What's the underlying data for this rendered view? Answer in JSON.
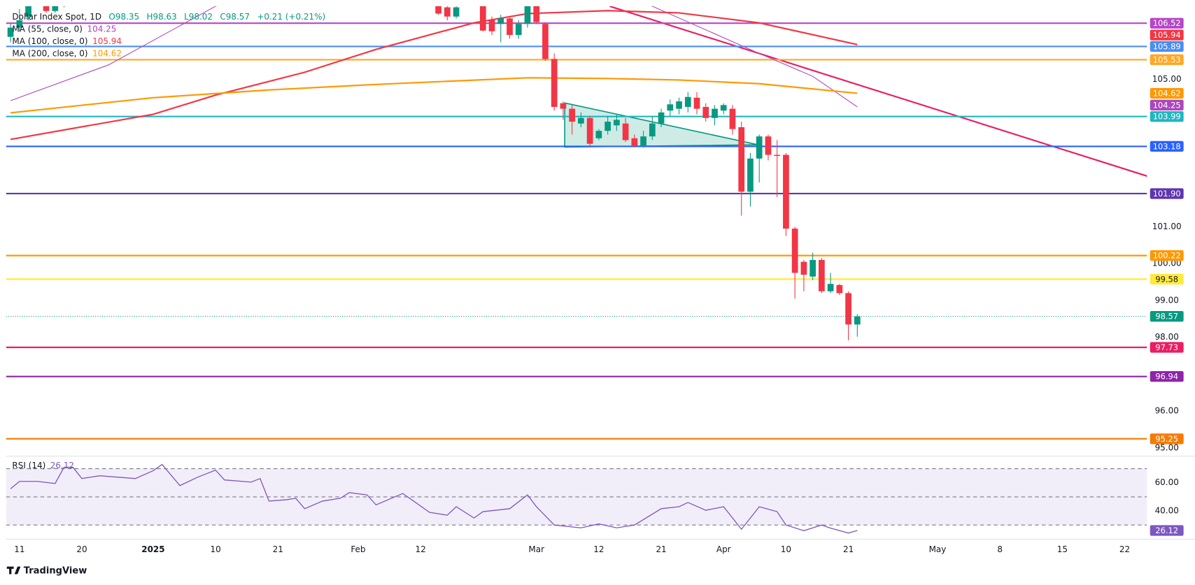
{
  "chart_data": [
    {
      "type": "candlestick",
      "title": "Dollar Index Spot, 1D",
      "ohlc": [
        "O98.35",
        "H98.63",
        "L98.02",
        "C98.57"
      ],
      "change": "+0.21 (+0.21%)",
      "categories": [
        null,
        "11",
        null,
        null,
        null,
        null,
        null,
        null,
        "20",
        null,
        null,
        null,
        null,
        null,
        null,
        null,
        "2025",
        null,
        null,
        null,
        null,
        null,
        null,
        "10",
        null,
        null,
        null,
        null,
        null,
        null,
        "21",
        null,
        null,
        null,
        null,
        null,
        null,
        null,
        null,
        "Feb",
        null,
        null,
        null,
        null,
        null,
        null,
        "12",
        null,
        null,
        null,
        null,
        null,
        null,
        null,
        null,
        null,
        null,
        null,
        null,
        "Mar",
        null,
        null,
        null,
        null,
        null,
        null,
        "12",
        null,
        null,
        null,
        null,
        null,
        null,
        "21",
        null,
        null,
        null,
        null,
        null,
        null,
        "Apr",
        null,
        null,
        null,
        null,
        null,
        null,
        "10",
        null,
        null,
        null,
        null,
        null,
        null,
        "21",
        null,
        null,
        null,
        null,
        null,
        null,
        null,
        null,
        null,
        "May",
        null,
        null,
        null,
        null,
        null,
        null,
        "8",
        null,
        null,
        null,
        null,
        null,
        null,
        "15",
        null,
        null,
        null,
        null,
        null,
        null,
        "22",
        null,
        null
      ],
      "open": [
        106.15,
        106.4,
        106.7,
        null,
        107.0,
        106.85,
        107.0,
        null,
        null,
        null,
        null,
        null,
        null,
        null,
        null,
        null,
        null,
        null,
        null,
        null,
        null,
        null,
        null,
        null,
        null,
        null,
        null,
        null,
        null,
        null,
        null,
        null,
        null,
        null,
        null,
        null,
        null,
        null,
        null,
        null,
        null,
        null,
        null,
        null,
        null,
        null,
        null,
        null,
        107.0,
        106.95,
        106.7,
        null,
        null,
        107.2,
        106.62,
        106.5,
        106.65,
        106.2,
        106.5,
        107.1,
        106.5,
        105.55,
        104.35,
        104.2,
        103.8,
        103.95,
        103.4,
        103.6,
        103.75,
        103.8,
        103.4,
        103.2,
        103.45,
        103.8,
        104.15,
        104.2,
        104.25,
        104.5,
        104.25,
        103.95,
        104.15,
        104.2,
        103.7,
        101.95,
        102.85,
        103.45,
        102.95,
        102.95,
        100.95,
        100.05,
        99.65,
        100.1,
        99.25,
        99.42,
        99.2,
        98.35,
        null,
        null,
        null,
        null,
        null,
        null,
        null,
        null,
        null,
        null,
        null,
        null,
        null,
        null,
        null,
        null,
        null,
        null,
        null,
        null,
        null,
        null,
        null,
        null,
        null,
        null,
        null,
        null,
        null,
        null,
        null,
        null
      ],
      "high": [
        106.5,
        106.9,
        107.2,
        null,
        107.1,
        107.05,
        107.2,
        null,
        null,
        null,
        null,
        null,
        null,
        null,
        null,
        null,
        null,
        null,
        null,
        null,
        null,
        null,
        null,
        null,
        null,
        null,
        null,
        null,
        null,
        null,
        null,
        null,
        null,
        null,
        null,
        null,
        null,
        null,
        null,
        null,
        null,
        null,
        null,
        null,
        null,
        null,
        null,
        null,
        107.1,
        107.0,
        107.05,
        null,
        null,
        107.3,
        106.7,
        106.75,
        106.7,
        106.6,
        107.3,
        107.2,
        106.55,
        105.7,
        104.4,
        104.3,
        104.1,
        104.0,
        103.65,
        104.0,
        104.05,
        103.95,
        103.5,
        103.6,
        104.0,
        104.2,
        104.45,
        104.5,
        104.65,
        104.65,
        104.35,
        104.3,
        104.35,
        104.3,
        103.85,
        103.0,
        103.5,
        103.5,
        103.35,
        103.0,
        101.0,
        100.1,
        100.3,
        100.15,
        99.75,
        99.45,
        99.25,
        98.63,
        null,
        null,
        null,
        null,
        null,
        null,
        null,
        null,
        null,
        null,
        null,
        null,
        null,
        null,
        null,
        null,
        null,
        null,
        null,
        null,
        null,
        null,
        null,
        null,
        null,
        null,
        null,
        null,
        null,
        null,
        null,
        null
      ],
      "low": [
        106.0,
        106.3,
        106.6,
        null,
        106.8,
        106.8,
        106.95,
        null,
        null,
        null,
        null,
        null,
        null,
        null,
        null,
        null,
        null,
        null,
        null,
        null,
        null,
        null,
        null,
        null,
        null,
        null,
        null,
        null,
        null,
        null,
        null,
        null,
        null,
        null,
        null,
        null,
        null,
        null,
        null,
        null,
        null,
        null,
        null,
        null,
        null,
        null,
        null,
        null,
        106.75,
        106.6,
        106.65,
        null,
        null,
        106.3,
        106.2,
        106.0,
        106.1,
        106.1,
        106.4,
        106.5,
        105.5,
        104.15,
        103.9,
        103.5,
        103.7,
        103.15,
        103.35,
        103.5,
        103.6,
        103.3,
        103.15,
        103.15,
        103.35,
        103.7,
        104.0,
        104.05,
        104.1,
        104.05,
        103.85,
        103.75,
        104.05,
        103.5,
        101.3,
        101.55,
        102.2,
        102.8,
        101.8,
        100.75,
        99.05,
        99.25,
        99.55,
        99.2,
        99.2,
        99.15,
        97.92,
        98.02,
        null,
        null,
        null,
        null,
        null,
        null,
        null,
        null,
        null,
        null,
        null,
        null,
        null,
        null,
        null,
        null,
        null,
        null,
        null,
        null,
        null,
        null,
        null,
        null,
        null,
        null,
        null,
        null,
        null,
        null,
        null,
        null
      ],
      "close": [
        106.4,
        106.6,
        107.0,
        null,
        106.85,
        107.0,
        107.1,
        null,
        null,
        null,
        null,
        null,
        null,
        null,
        null,
        null,
        null,
        null,
        null,
        null,
        null,
        null,
        null,
        null,
        null,
        null,
        null,
        null,
        null,
        null,
        null,
        null,
        null,
        null,
        null,
        null,
        null,
        null,
        null,
        null,
        null,
        null,
        null,
        null,
        null,
        null,
        null,
        null,
        106.78,
        106.7,
        106.95,
        null,
        null,
        106.32,
        106.3,
        106.65,
        106.2,
        106.5,
        107.0,
        106.55,
        105.55,
        104.25,
        104.2,
        103.85,
        103.95,
        103.25,
        103.6,
        103.85,
        103.9,
        103.35,
        103.2,
        103.45,
        103.8,
        104.1,
        104.32,
        104.4,
        104.52,
        104.2,
        103.95,
        104.2,
        104.3,
        103.65,
        101.95,
        102.85,
        103.45,
        102.95,
        102.92,
        100.95,
        99.75,
        99.7,
        100.1,
        99.25,
        99.45,
        99.2,
        98.35,
        98.57,
        null,
        null,
        null,
        null,
        null,
        null,
        null,
        null,
        null,
        null,
        null,
        null,
        null,
        null,
        null,
        null,
        null,
        null,
        null,
        null,
        null,
        null,
        null,
        null,
        null,
        null,
        null,
        null,
        null,
        null,
        null,
        null
      ],
      "up_color": "#089981",
      "down_color": "#f23645",
      "ylim": [
        94.82,
        106.98
      ],
      "yticks": [
        {
          "value": 105,
          "label": "105.00"
        },
        {
          "value": 101,
          "label": "101.00"
        },
        {
          "value": 100,
          "label": "100.00"
        },
        {
          "value": 99,
          "label": "99.00"
        },
        {
          "value": 98,
          "label": "98.00"
        },
        {
          "value": 96,
          "label": "96.00"
        },
        {
          "value": 95,
          "label": "95.00"
        }
      ],
      "moving_averages": [
        {
          "name": "MA (55, close, 0)",
          "value": 104.25,
          "color": "#ab47bc",
          "x": [
            0,
            11,
            23,
            35,
            50,
            72,
            84,
            90,
            95
          ],
          "values": [
            104.42,
            105.39,
            106.98,
            107.77,
            108.3,
            106.98,
            105.7,
            105.08,
            104.25
          ]
        },
        {
          "name": "MA (100, close, 0)",
          "value": 105.94,
          "color": "#f23645",
          "x": [
            0,
            16,
            23,
            33,
            41,
            52,
            58,
            67,
            75,
            84,
            95
          ],
          "values": [
            103.37,
            104.05,
            104.57,
            105.19,
            105.81,
            106.53,
            106.78,
            106.86,
            106.8,
            106.53,
            105.94
          ]
        },
        {
          "name": "MA (200, close, 0)",
          "value": 104.62,
          "color": "#ff9800",
          "x": [
            0,
            16,
            29,
            41,
            58,
            67,
            75,
            84,
            95
          ],
          "values": [
            104.09,
            104.5,
            104.71,
            104.86,
            105.04,
            105.02,
            104.98,
            104.88,
            104.62
          ]
        }
      ],
      "levels": [
        {
          "value": 106.52,
          "color": "#b548c6"
        },
        {
          "value": 105.89,
          "color": "#4c8ef0"
        },
        {
          "value": 105.53,
          "color": "#ffa726"
        },
        {
          "value": 103.99,
          "color": "#22b5bf"
        },
        {
          "value": 103.18,
          "color": "#2962ff"
        },
        {
          "value": 101.9,
          "label": "101.90",
          "color": "#5e35b1"
        },
        {
          "value": 100.22,
          "color": "#ff9800"
        },
        {
          "value": 99.58,
          "color": "#ffeb3b"
        },
        {
          "value": 97.73,
          "color": "#e91e63"
        },
        {
          "value": 96.94,
          "color": "#8e24aa"
        },
        {
          "value": 95.25,
          "color": "#f57c00"
        }
      ]
    },
    {
      "type": "line",
      "name": "RSI (14)",
      "value": 26.12,
      "color": "#7e57c2",
      "x": [
        0,
        1,
        3,
        5,
        6,
        7,
        8,
        10,
        12,
        14,
        16,
        17,
        19,
        21,
        23,
        24,
        27,
        28,
        29,
        31,
        32,
        33,
        35,
        37,
        38,
        40,
        41,
        44,
        45,
        47,
        49,
        50,
        52,
        53,
        56,
        58,
        59,
        61,
        64,
        66,
        68,
        70,
        73,
        75,
        76,
        78,
        80,
        82,
        84,
        86,
        87,
        89,
        91,
        92,
        94,
        95
      ],
      "values": [
        55.7,
        61,
        61,
        59.5,
        71,
        71,
        63,
        65,
        64,
        63,
        68.6,
        73,
        58,
        64,
        69,
        62,
        60.5,
        63,
        47,
        48,
        49,
        41.6,
        47,
        49,
        53,
        51.4,
        44.3,
        52.4,
        48,
        39,
        37,
        43,
        35,
        39.5,
        41.6,
        51.4,
        43,
        30,
        28,
        30.8,
        28,
        30,
        41.6,
        43,
        46,
        40.5,
        43,
        27,
        43,
        39.5,
        30,
        26,
        30,
        27.8,
        24.3,
        26.12
      ],
      "ylim": [
        20.5,
        77.8
      ],
      "yticks": [
        {
          "value": 60,
          "label": "60.00"
        },
        {
          "value": 40,
          "label": "40.00"
        }
      ],
      "bands": [
        70,
        50,
        30
      ]
    }
  ],
  "footer": {
    "brand": "TradingView"
  }
}
